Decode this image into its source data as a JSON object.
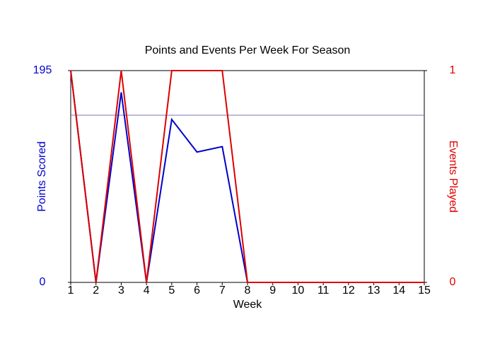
{
  "chart_data": {
    "type": "line",
    "title": "Points and Events Per Week For Season",
    "x_label": "Week",
    "y_label": "Points Scored",
    "y2_label": "Events Played",
    "x": [
      1,
      2,
      3,
      4,
      5,
      6,
      7,
      8,
      9,
      10,
      11,
      12,
      13,
      14,
      15
    ],
    "xlim": [
      1,
      15
    ],
    "xticks": [
      1,
      2,
      3,
      4,
      5,
      6,
      7,
      8,
      9,
      10,
      11,
      12,
      13,
      14,
      15
    ],
    "ylim": [
      0,
      195
    ],
    "yticks": [
      0,
      195
    ],
    "y_color": "#0000cc",
    "y2lim": [
      0,
      1
    ],
    "y2ticks": [
      0,
      1
    ],
    "y2_color": "#dd0000",
    "reference_line": {
      "value": 154,
      "color": "#7777bb"
    },
    "series": [
      {
        "name": "Points Scored",
        "color": "#0000cc",
        "values": [
          195,
          0,
          175,
          0,
          150,
          120,
          125,
          0,
          0,
          0,
          0,
          0,
          0,
          0,
          0
        ]
      },
      {
        "name": "Events Played",
        "color": "#dd0000",
        "axis": "y2",
        "values": [
          1,
          0,
          1,
          0,
          1,
          1,
          1,
          0,
          0,
          0,
          0,
          0,
          0,
          0,
          0
        ]
      }
    ]
  }
}
